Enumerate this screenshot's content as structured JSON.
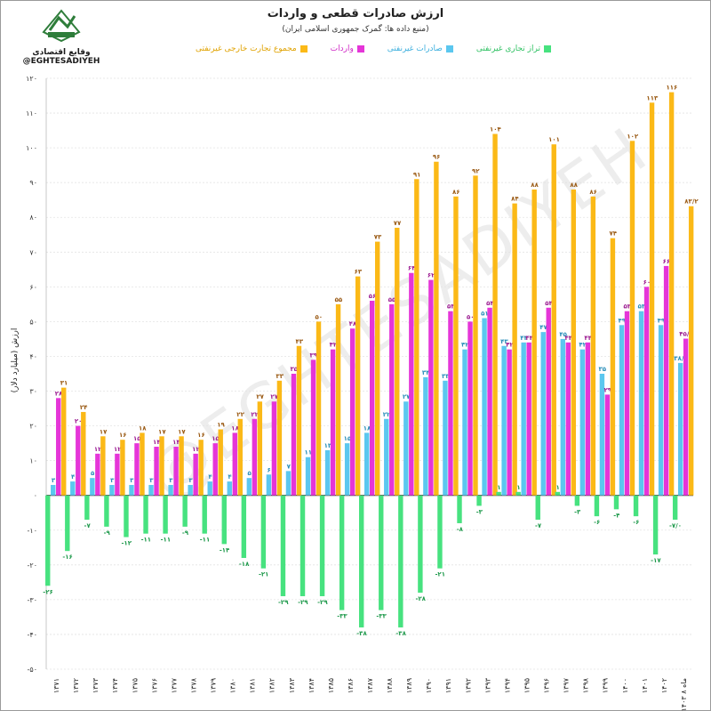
{
  "header": {
    "title": "ارزش صادرات قطعی و واردات",
    "subtitle": "(منبع داده ها: گمرک جمهوری اسلامی ایران)"
  },
  "logo": {
    "text": "وقایع اقتصادی",
    "handle": "@EGHTESADIYEH"
  },
  "watermark": "@EGHTESADIYEH",
  "colors": {
    "total": "#fbb917",
    "imports": "#e535d8",
    "exports": "#5bc7ef",
    "balance": "#47e27f"
  },
  "chart_data": {
    "type": "bar",
    "ylabel": "ارزش (میلیارد دلار)",
    "ylim": [
      -50,
      120
    ],
    "yticks": [
      -50,
      -40,
      -30,
      -20,
      -10,
      0,
      10,
      20,
      30,
      40,
      50,
      60,
      70,
      80,
      90,
      100,
      110,
      120
    ],
    "ytick_labels": [
      "-۵۰",
      "-۴۰",
      "-۳۰",
      "-۲۰",
      "-۱۰",
      "۰",
      "۱۰",
      "۲۰",
      "۳۰",
      "۴۰",
      "۵۰",
      "۶۰",
      "۷۰",
      "۸۰",
      "۹۰",
      "۱۰۰",
      "۱۱۰",
      "۱۲۰"
    ],
    "categories": [
      "۱۳۷۱",
      "۱۳۷۲",
      "۱۳۷۳",
      "۱۳۷۴",
      "۱۳۷۵",
      "۱۳۷۶",
      "۱۳۷۷",
      "۱۳۷۸",
      "۱۳۷۹",
      "۱۳۸۰",
      "۱۳۸۱",
      "۱۳۸۲",
      "۱۳۸۳",
      "۱۳۸۴",
      "۱۳۸۵",
      "۱۳۸۶",
      "۱۳۸۷",
      "۱۳۸۸",
      "۱۳۸۹",
      "۱۳۹۰",
      "۱۳۹۱",
      "۱۳۹۲",
      "۱۳۹۳",
      "۱۳۹۴",
      "۱۳۹۵",
      "۱۳۹۶",
      "۱۳۹۷",
      "۱۳۹۸",
      "۱۳۹۹",
      "۱۴۰۰",
      "۱۴۰۱",
      "۱۴۰۲",
      "۱۴۰۳ ماه ۸"
    ],
    "series": [
      {
        "name": "مجموع تجارت خارجی غیرنفتی",
        "key": "total",
        "values": [
          31,
          24,
          17,
          16,
          18,
          17,
          17,
          16,
          19,
          22,
          27,
          33,
          43,
          50,
          55,
          63,
          73,
          77,
          91,
          96,
          86,
          92,
          104,
          84,
          88,
          101,
          88,
          86,
          74,
          102,
          113,
          116,
          83.2
        ],
        "labels": [
          "۳۱",
          "۲۴",
          "۱۷",
          "۱۶",
          "۱۸",
          "۱۷",
          "۱۷",
          "۱۶",
          "۱۹",
          "۲۲",
          "۲۷",
          "۳۳",
          "۴۳",
          "۵۰",
          "۵۵",
          "۶۳",
          "۷۳",
          "۷۷",
          "۹۱",
          "۹۶",
          "۸۶",
          "۹۲",
          "۱۰۴",
          "۸۴",
          "۸۸",
          "۱۰۱",
          "۸۸",
          "۸۶",
          "۷۴",
          "۱۰۲",
          "۱۱۳",
          "۱۱۶",
          "۸۳/۲"
        ]
      },
      {
        "name": "واردات",
        "key": "imports",
        "values": [
          28,
          20,
          12,
          12,
          15,
          14,
          14,
          12,
          15,
          18,
          22,
          27,
          35,
          39,
          42,
          48,
          56,
          55,
          64,
          62,
          53,
          50,
          54,
          42,
          44,
          54,
          44,
          44,
          29,
          53,
          60,
          66,
          45.1
        ],
        "labels": [
          "۲۸",
          "۲۰",
          "۱۲",
          "۱۲",
          "۱۵",
          "۱۴",
          "۱۴",
          "۱۲",
          "۱۵",
          "۱۸",
          "۲۲",
          "۲۷",
          "۳۵",
          "۳۹",
          "۴۲",
          "۴۸",
          "۵۶",
          "۵۵",
          "۶۴",
          "۶۲",
          "۵۳",
          "۵۰",
          "۵۴",
          "۴۲",
          "۴۴",
          "۵۴",
          "۴۴",
          "۴۴",
          "۲۹",
          "۵۳",
          "۶۰",
          "۶۶",
          "۴۵/۱"
        ]
      },
      {
        "name": "صادرات غیرنفتی",
        "key": "exports",
        "values": [
          3,
          4,
          5,
          3,
          3,
          3,
          3,
          3,
          4,
          4,
          5,
          6,
          7,
          11,
          13,
          15,
          18,
          22,
          27,
          34,
          33,
          42,
          51,
          43,
          44,
          47,
          45,
          42,
          35,
          49,
          53,
          49,
          38.1
        ],
        "labels": [
          "۳",
          "۴",
          "۵",
          "۳",
          "۳",
          "۳",
          "۳",
          "۳",
          "۴",
          "۴",
          "۵",
          "۶",
          "۷",
          "۱۱",
          "۱۳",
          "۱۵",
          "۱۸",
          "۲۲",
          "۲۷",
          "۳۴",
          "۳۳",
          "۴۲",
          "۵۱",
          "۴۳",
          "۴۴",
          "۴۷",
          "۴۵",
          "۴۲",
          "۳۵",
          "۴۹",
          "۵۳",
          "۴۹",
          "۳۸/۱"
        ]
      },
      {
        "name": "تراز تجاری غیرنفتی",
        "key": "balance",
        "values": [
          -26,
          -16,
          -7,
          -9,
          -12,
          -11,
          -11,
          -9,
          -11,
          -14,
          -18,
          -21,
          -29,
          -29,
          -29,
          -33,
          -38,
          -33,
          -38,
          -28,
          -21,
          -8,
          -3,
          1,
          1,
          -7,
          1,
          -3,
          -6,
          -4,
          -6,
          -17,
          -7
        ],
        "labels": [
          "-۲۶",
          "-۱۶",
          "-۷",
          "-۹",
          "-۱۲",
          "-۱۱",
          "-۱۱",
          "-۹",
          "-۱۱",
          "-۱۴",
          "-۱۸",
          "-۲۱",
          "-۲۹",
          "-۲۹",
          "-۲۹",
          "-۳۳",
          "-۳۸",
          "-۳۳",
          "-۳۸",
          "-۲۸",
          "-۲۱",
          "-۸",
          "-۳",
          "۱",
          "۱",
          "-۷",
          "۱",
          "-۳",
          "-۶",
          "-۴",
          "-۶",
          "-۱۷",
          "-۷/۰"
        ]
      }
    ],
    "legend_position": "top"
  }
}
